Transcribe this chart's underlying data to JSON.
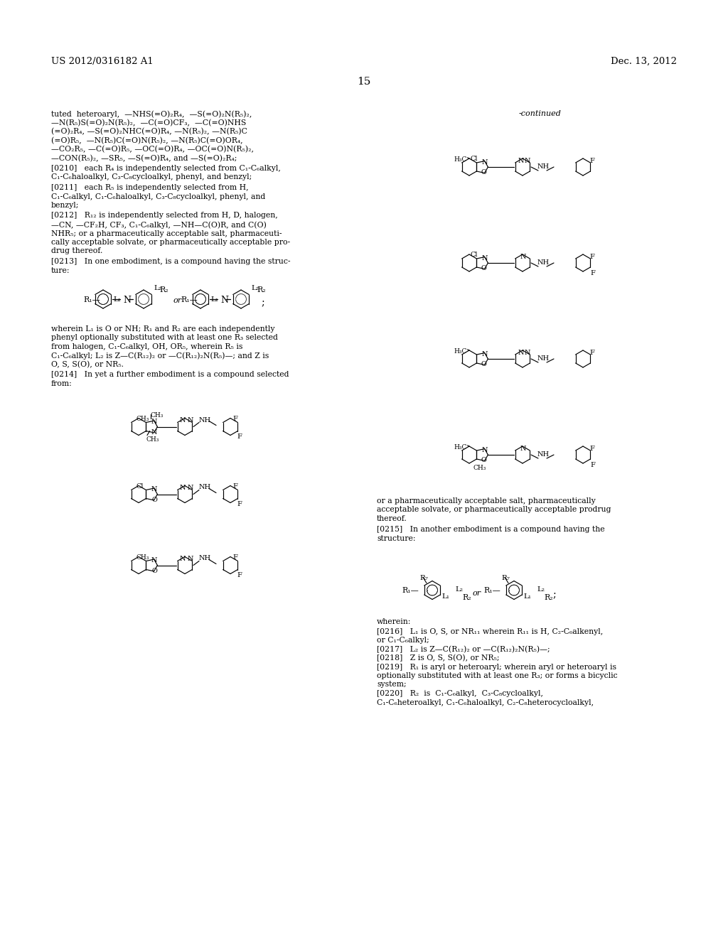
{
  "page_header_left": "US 2012/0316182 A1",
  "page_header_right": "Dec. 13, 2012",
  "page_number": "15",
  "background_color": "#ffffff",
  "text_color": "#000000",
  "font_size_body": 7.5,
  "font_size_header": 9,
  "font_size_page_num": 10,
  "left_col_text": [
    "tuted  heteroaryl,  —NHS(=O)₂R₄,  —S(=O)₂N(R₅)₂,",
    "—N(R₅)S(=O)₂N(R₅)₂,  —C(=O)CF₃,  —C(=O)NHS",
    "(=O)₂R₄, —S(=O)₂NHC(=O)R₄, —N(R₅)₂, —N(R₅)C",
    "(=O)R₅,  —N(R₅)C(=O)N(R₅)₂, —N(R₅)C(=O)OR₄,",
    "—CO₂R₅, —C(=O)R₅, —OC(=O)R₄, —OC(=O)N(R₅)₂,",
    "—CON(R₅)₂, —SR₅, —S(=O)R₄, and —S(=O)₂R₄;"
  ],
  "paragraph_0210": "[0210]   each R₄ is independently selected from C₁-C₆alkyl, C₁-C₆haloalkyl, C₃-C₈cycloalkyl, phenyl, and benzyl;",
  "paragraph_0211": "[0211]   each R₅ is independently selected from H, C₁-C₆alkyl, C₁-C₆haloalkyl, C₃-C₈cycloalkyl, phenyl, and benzyl;",
  "paragraph_0212": "[0212]   R₁₂ is independently selected from H, D, halogen, —CN, —CF₂H, CF₃, C₁-C₆alkyl, —NH—C(O)R, and C(O)NHR₅; or a pharmaceutically acceptable salt, pharmaceutically acceptable solvate, or pharmaceutically acceptable prodrug thereof.",
  "paragraph_0213": "[0213]   In one embodiment, is a compound having the structure:",
  "paragraph_0214": "[0214]   In yet a further embodiment is a compound selected from:",
  "paragraph_0215": "[0215]   In another embodiment is a compound having the structure:",
  "paragraph_0216": "[0216]   L₁ is O, S, or NR₁₁ wherein R₁₁ is H, C₂-C₆alkenyl, or C₁-C₆alkyl;",
  "paragraph_0217": "[0217]   L₂ is Z—C(R₁₂)₂ or —C(R₁₂)₂N(R₅)—;",
  "paragraph_0218": "[0218]   Z is O, S, S(O), or NR₅;",
  "paragraph_0219": "[0219]   R₁ is aryl or heteroaryl; wherein aryl or heteroaryl is optionally substituted with at least one R₃; or forms a bicyclic system;",
  "paragraph_0220": "[0220]   R₂  is  C₁-C₆alkyl,  C₃-C₈cycloalkyl, C₁-C₆heteroalkyl, C₁-C₆haloalkyl, C₂-C₈heterocycloalkyl,",
  "wherein_text": "wherein L₁ is O or NH; R₁ and R₂ are each independently phenyl optionally substituted with at least one R₃ selected from halogen, C₁-C₆alkyl, OH, OR₅, wherein R₅ is C₁-C₆alkyl; L₂ is Z—C(R₁₂)₂ or —C(R₁₂)₂N(R₅)—; and Z is O, S, S(O), or NR₅.",
  "continued_label": "-continued"
}
